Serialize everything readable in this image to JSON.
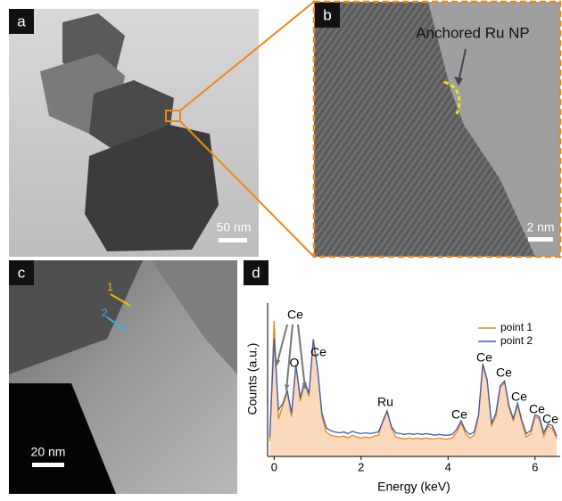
{
  "panels": {
    "a": {
      "label": "a",
      "scale_bar": "50 nm"
    },
    "b": {
      "label": "b",
      "scale_bar": "2 nm",
      "annotation": "Anchored Ru NP"
    },
    "c": {
      "label": "c",
      "scale_bar": "20 nm",
      "points": [
        "1",
        "2"
      ]
    }
  },
  "chart_data": {
    "type": "line",
    "label": "d",
    "xlabel": "Energy (keV)",
    "ylabel": "Counts (a.u.)",
    "x": [
      -0.1,
      0.0,
      0.1,
      0.2,
      0.3,
      0.4,
      0.5,
      0.6,
      0.7,
      0.8,
      0.9,
      1.0,
      1.1,
      1.2,
      1.3,
      1.4,
      1.5,
      1.6,
      1.7,
      1.8,
      1.9,
      2.0,
      2.1,
      2.2,
      2.3,
      2.4,
      2.5,
      2.6,
      2.7,
      2.8,
      2.9,
      3.0,
      3.1,
      3.2,
      3.3,
      3.4,
      3.5,
      3.6,
      3.7,
      3.8,
      3.9,
      4.0,
      4.1,
      4.2,
      4.3,
      4.4,
      4.5,
      4.6,
      4.7,
      4.8,
      4.9,
      5.0,
      5.1,
      5.2,
      5.3,
      5.4,
      5.5,
      5.6,
      5.7,
      5.8,
      5.9,
      6.0,
      6.1,
      6.2,
      6.3,
      6.4,
      6.5
    ],
    "series": [
      {
        "name": "point 1",
        "color": "#f0841c",
        "fill": "#fbd9bd",
        "values": [
          20,
          4500,
          54,
          100,
          180,
          60,
          600,
          120,
          270,
          150,
          2000,
          500,
          60,
          30,
          26,
          25,
          24,
          25,
          23,
          26,
          24,
          23,
          24,
          23,
          25,
          26,
          50,
          80,
          35,
          24,
          23,
          22,
          23,
          22,
          23,
          22,
          23,
          22,
          22,
          23,
          22,
          22,
          23,
          30,
          45,
          28,
          23,
          26,
          60,
          600,
          300,
          40,
          60,
          220,
          280,
          90,
          50,
          100,
          45,
          24,
          28,
          60,
          55,
          25,
          39,
          35,
          22
        ]
      },
      {
        "name": "point 2",
        "color": "#3a5fb0",
        "values": [
          24,
          2000,
          81,
          110,
          200,
          70,
          620,
          140,
          300,
          170,
          1900,
          520,
          70,
          36,
          32,
          30,
          29,
          30,
          28,
          31,
          29,
          28,
          29,
          28,
          29,
          30,
          48,
          75,
          38,
          29,
          28,
          27,
          28,
          27,
          28,
          27,
          28,
          27,
          26,
          27,
          26,
          26,
          27,
          34,
          50,
          32,
          27,
          30,
          65,
          650,
          320,
          45,
          70,
          240,
          300,
          100,
          55,
          110,
          50,
          28,
          32,
          65,
          60,
          29,
          43,
          40,
          25
        ]
      }
    ],
    "xlim": [
      -0.15,
      6.58
    ],
    "xticks": [
      0,
      2,
      4,
      6
    ],
    "ylim": [
      10,
      10000
    ],
    "log_y": true,
    "legend": "upper right",
    "annotations": [
      "Ce",
      "O",
      "Ce",
      "Ru",
      "Ce",
      "Ce",
      "Ce",
      "Ce",
      "Ce",
      "Ce"
    ]
  }
}
